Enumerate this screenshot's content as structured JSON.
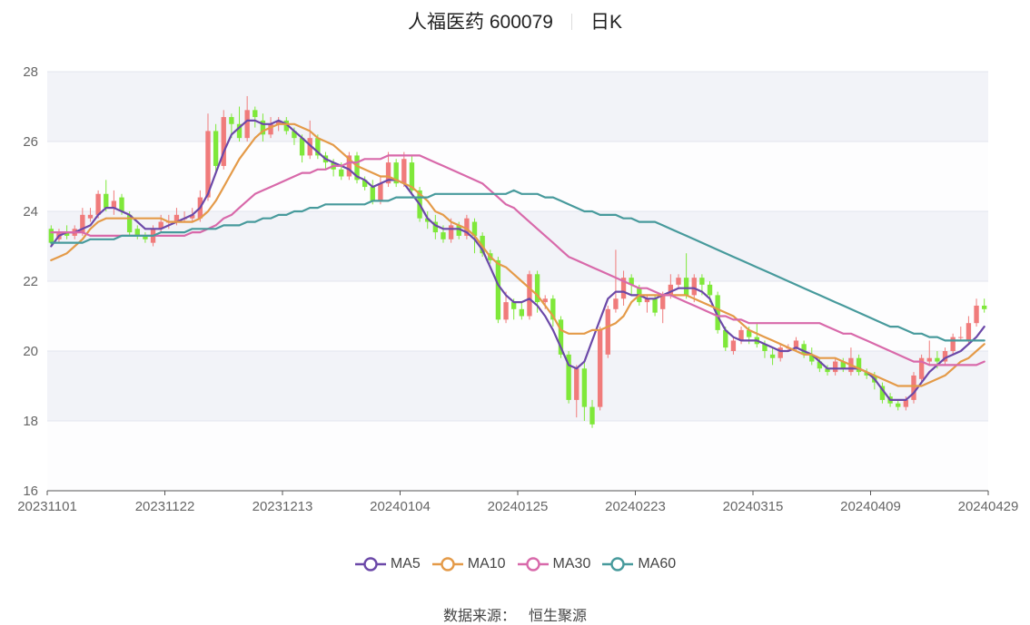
{
  "title": {
    "name": "人福医药 600079",
    "period": "日K"
  },
  "source": {
    "label": "数据来源：",
    "value": "恒生聚源"
  },
  "chart_data": {
    "type": "candlestick",
    "x_ticks": [
      "20231101",
      "20231122",
      "20231213",
      "20240104",
      "20240125",
      "20240223",
      "20240315",
      "20240409",
      "20240429"
    ],
    "ylim": [
      16,
      28
    ],
    "yticks": [
      16,
      18,
      20,
      22,
      24,
      26,
      28
    ],
    "up_color": "#f07b7b",
    "down_color": "#7fe83a",
    "band_color": "#f2f3f8",
    "candles": [
      [
        23.5,
        23.1,
        23.6,
        23.0
      ],
      [
        23.2,
        23.4,
        23.5,
        23.1
      ],
      [
        23.4,
        23.3,
        23.6,
        23.2
      ],
      [
        23.3,
        23.5,
        23.6,
        23.2
      ],
      [
        23.4,
        23.9,
        24.1,
        23.3
      ],
      [
        23.8,
        23.9,
        24.1,
        23.7
      ],
      [
        23.9,
        24.5,
        24.6,
        23.8
      ],
      [
        24.5,
        24.1,
        24.9,
        24.0
      ],
      [
        24.1,
        24.3,
        24.6,
        23.9
      ],
      [
        24.4,
        24.0,
        24.5,
        23.9
      ],
      [
        23.9,
        23.4,
        24.0,
        23.3
      ],
      [
        23.5,
        23.3,
        23.6,
        23.2
      ],
      [
        23.3,
        23.2,
        23.4,
        23.1
      ],
      [
        23.1,
        23.5,
        23.6,
        23.0
      ],
      [
        23.5,
        23.7,
        23.9,
        23.4
      ],
      [
        23.7,
        23.7,
        23.9,
        23.5
      ],
      [
        23.7,
        23.9,
        24.1,
        23.6
      ],
      [
        23.8,
        23.8,
        24.0,
        23.7
      ],
      [
        23.8,
        23.9,
        24.1,
        23.7
      ],
      [
        23.8,
        24.4,
        24.6,
        23.7
      ],
      [
        24.4,
        26.3,
        26.8,
        24.3
      ],
      [
        26.3,
        25.3,
        26.5,
        25.1
      ],
      [
        25.3,
        26.7,
        26.9,
        25.2
      ],
      [
        26.7,
        26.5,
        26.8,
        26.1
      ],
      [
        26.5,
        26.1,
        27.0,
        26.0
      ],
      [
        26.1,
        26.9,
        27.3,
        26.0
      ],
      [
        26.9,
        26.7,
        27.0,
        26.4
      ],
      [
        26.6,
        26.2,
        26.8,
        26.0
      ],
      [
        26.2,
        26.5,
        26.7,
        26.1
      ],
      [
        26.5,
        26.6,
        26.7,
        26.3
      ],
      [
        26.6,
        26.3,
        26.7,
        26.2
      ],
      [
        26.3,
        26.1,
        26.4,
        25.9
      ],
      [
        26.1,
        25.6,
        26.2,
        25.4
      ],
      [
        25.6,
        26.1,
        26.6,
        25.5
      ],
      [
        26.1,
        25.6,
        26.2,
        25.5
      ],
      [
        25.6,
        25.4,
        25.7,
        25.2
      ],
      [
        25.4,
        25.2,
        25.5,
        25.0
      ],
      [
        25.2,
        25.0,
        25.4,
        24.9
      ],
      [
        25.0,
        25.6,
        25.7,
        24.9
      ],
      [
        25.6,
        24.9,
        25.7,
        24.8
      ],
      [
        24.9,
        24.7,
        25.0,
        24.6
      ],
      [
        24.7,
        24.3,
        24.9,
        24.2
      ],
      [
        24.3,
        24.8,
        25.0,
        24.2
      ],
      [
        24.8,
        25.4,
        25.7,
        24.7
      ],
      [
        25.4,
        24.8,
        25.5,
        24.7
      ],
      [
        24.8,
        25.5,
        25.7,
        24.7
      ],
      [
        25.4,
        24.6,
        25.6,
        24.5
      ],
      [
        24.6,
        23.8,
        24.7,
        23.7
      ],
      [
        23.8,
        23.7,
        24.0,
        23.5
      ],
      [
        23.7,
        23.4,
        23.9,
        23.2
      ],
      [
        23.4,
        23.2,
        23.6,
        23.1
      ],
      [
        23.2,
        23.6,
        23.8,
        23.1
      ],
      [
        23.6,
        23.3,
        23.7,
        23.2
      ],
      [
        23.3,
        23.8,
        23.9,
        23.2
      ],
      [
        23.7,
        23.3,
        23.8,
        22.8
      ],
      [
        23.3,
        22.8,
        23.4,
        22.7
      ],
      [
        22.8,
        22.6,
        22.9,
        22.5
      ],
      [
        22.6,
        20.9,
        22.7,
        20.8
      ],
      [
        20.9,
        21.4,
        21.7,
        20.8
      ],
      [
        21.4,
        21.2,
        21.5,
        20.9
      ],
      [
        21.2,
        21.0,
        21.4,
        20.9
      ],
      [
        21.0,
        22.2,
        22.3,
        20.9
      ],
      [
        22.2,
        21.4,
        22.3,
        21.1
      ],
      [
        21.4,
        21.5,
        21.6,
        21.2
      ],
      [
        21.5,
        20.9,
        21.6,
        20.7
      ],
      [
        20.9,
        19.9,
        21.0,
        19.8
      ],
      [
        19.9,
        18.6,
        20.0,
        18.5
      ],
      [
        18.6,
        19.5,
        19.6,
        18.1
      ],
      [
        19.5,
        18.4,
        19.7,
        18.0
      ],
      [
        18.4,
        17.9,
        18.6,
        17.8
      ],
      [
        18.4,
        20.6,
        20.7,
        18.3
      ],
      [
        19.9,
        21.2,
        21.3,
        19.8
      ],
      [
        21.2,
        21.5,
        22.9,
        21.1
      ],
      [
        21.5,
        22.1,
        22.3,
        21.3
      ],
      [
        22.1,
        21.9,
        22.2,
        21.6
      ],
      [
        21.8,
        21.4,
        21.9,
        21.3
      ],
      [
        21.4,
        21.5,
        21.6,
        21.1
      ],
      [
        21.5,
        21.1,
        21.6,
        21.0
      ],
      [
        21.2,
        21.6,
        21.7,
        20.8
      ],
      [
        21.6,
        21.9,
        22.2,
        21.5
      ],
      [
        21.9,
        22.1,
        22.2,
        21.8
      ],
      [
        22.1,
        21.6,
        22.8,
        21.5
      ],
      [
        21.6,
        22.1,
        22.2,
        21.4
      ],
      [
        22.1,
        21.9,
        22.2,
        21.6
      ],
      [
        21.9,
        21.6,
        22.0,
        21.4
      ],
      [
        21.6,
        20.6,
        21.7,
        20.5
      ],
      [
        20.6,
        20.1,
        20.7,
        20.0
      ],
      [
        20.0,
        20.3,
        20.4,
        19.9
      ],
      [
        20.3,
        20.6,
        20.7,
        20.2
      ],
      [
        20.6,
        20.4,
        20.7,
        20.2
      ],
      [
        20.4,
        20.2,
        20.8,
        20.1
      ],
      [
        20.2,
        20.0,
        20.3,
        19.8
      ],
      [
        19.9,
        19.8,
        20.1,
        19.6
      ],
      [
        19.8,
        20.1,
        20.2,
        19.7
      ],
      [
        20.1,
        20.1,
        20.2,
        20.0
      ],
      [
        20.1,
        20.3,
        20.4,
        20.0
      ],
      [
        20.2,
        19.9,
        20.3,
        19.8
      ],
      [
        19.9,
        19.7,
        20.1,
        19.6
      ],
      [
        19.7,
        19.5,
        19.8,
        19.4
      ],
      [
        19.5,
        19.4,
        19.6,
        19.3
      ],
      [
        19.4,
        19.7,
        19.8,
        19.3
      ],
      [
        19.7,
        19.5,
        19.8,
        19.4
      ],
      [
        19.4,
        19.8,
        20.1,
        19.3
      ],
      [
        19.8,
        19.4,
        19.9,
        19.3
      ],
      [
        19.4,
        19.3,
        19.5,
        19.2
      ],
      [
        19.3,
        19.1,
        19.4,
        18.9
      ],
      [
        19.0,
        18.6,
        19.1,
        18.5
      ],
      [
        18.7,
        18.5,
        18.8,
        18.4
      ],
      [
        18.5,
        18.4,
        18.6,
        18.3
      ],
      [
        18.4,
        18.6,
        18.7,
        18.3
      ],
      [
        18.6,
        19.3,
        19.4,
        18.5
      ],
      [
        19.2,
        19.8,
        19.9,
        19.1
      ],
      [
        19.7,
        19.8,
        20.3,
        19.6
      ],
      [
        19.8,
        19.7,
        20.0,
        19.5
      ],
      [
        19.7,
        20.0,
        20.1,
        19.6
      ],
      [
        20.0,
        20.4,
        20.5,
        19.9
      ],
      [
        20.4,
        20.4,
        20.7,
        20.3
      ],
      [
        20.3,
        20.8,
        21.0,
        20.2
      ],
      [
        20.8,
        21.3,
        21.5,
        20.7
      ],
      [
        21.3,
        21.2,
        21.5,
        21.1
      ]
    ],
    "series": [
      {
        "name": "MA5",
        "color": "#6b48a8",
        "values": [
          23.0,
          23.3,
          23.4,
          23.4,
          23.5,
          23.6,
          23.9,
          24.1,
          24.1,
          24.0,
          23.9,
          23.7,
          23.5,
          23.5,
          23.5,
          23.6,
          23.7,
          23.8,
          23.9,
          24.1,
          24.5,
          25.1,
          25.7,
          26.2,
          26.4,
          26.6,
          26.6,
          26.5,
          26.5,
          26.6,
          26.5,
          26.3,
          26.1,
          25.9,
          25.7,
          25.5,
          25.4,
          25.3,
          25.2,
          25.0,
          24.9,
          24.7,
          24.8,
          24.9,
          24.9,
          24.8,
          24.5,
          24.2,
          23.8,
          23.6,
          23.5,
          23.5,
          23.5,
          23.4,
          23.2,
          22.9,
          22.4,
          21.9,
          21.6,
          21.4,
          21.4,
          21.5,
          21.3,
          21.0,
          20.6,
          20.1,
          19.6,
          19.5,
          19.7,
          20.3,
          20.9,
          21.5,
          21.7,
          21.7,
          21.6,
          21.6,
          21.5,
          21.5,
          21.6,
          21.7,
          21.8,
          21.8,
          21.8,
          21.7,
          21.5,
          21.0,
          20.6,
          20.4,
          20.3,
          20.3,
          20.3,
          20.2,
          20.1,
          20.0,
          20.0,
          20.1,
          20.0,
          19.9,
          19.7,
          19.5,
          19.5,
          19.5,
          19.5,
          19.5,
          19.4,
          19.2,
          18.9,
          18.6,
          18.6,
          18.6,
          18.8,
          19.1,
          19.4,
          19.6,
          19.8,
          19.9,
          20.0,
          20.2,
          20.4,
          20.7
        ]
      },
      {
        "name": "MA10",
        "color": "#e49a48",
        "values": [
          22.6,
          22.7,
          22.8,
          23.0,
          23.2,
          23.5,
          23.7,
          23.8,
          23.8,
          23.8,
          23.8,
          23.8,
          23.8,
          23.8,
          23.8,
          23.7,
          23.7,
          23.7,
          23.7,
          23.8,
          24.0,
          24.3,
          24.7,
          25.1,
          25.5,
          25.8,
          26.1,
          26.3,
          26.4,
          26.5,
          26.5,
          26.5,
          26.4,
          26.3,
          26.1,
          26.0,
          25.9,
          25.7,
          25.5,
          25.3,
          25.2,
          25.1,
          25.0,
          25.0,
          24.9,
          24.8,
          24.7,
          24.5,
          24.3,
          24.0,
          23.9,
          23.7,
          23.6,
          23.5,
          23.3,
          23.0,
          22.7,
          22.5,
          22.4,
          22.2,
          22.0,
          21.8,
          21.6,
          21.3,
          21.0,
          20.6,
          20.5,
          20.5,
          20.5,
          20.6,
          20.6,
          20.7,
          20.8,
          21.0,
          21.4,
          21.6,
          21.6,
          21.6,
          21.6,
          21.6,
          21.6,
          21.6,
          21.5,
          21.4,
          21.3,
          21.2,
          21.1,
          21.0,
          20.8,
          20.6,
          20.5,
          20.4,
          20.3,
          20.2,
          20.1,
          20.0,
          19.9,
          19.9,
          19.8,
          19.8,
          19.8,
          19.7,
          19.6,
          19.5,
          19.4,
          19.3,
          19.2,
          19.1,
          19.0,
          19.0,
          19.0,
          19.0,
          19.1,
          19.2,
          19.3,
          19.5,
          19.7,
          19.8,
          20.0,
          20.2
        ]
      },
      {
        "name": "MA30",
        "color": "#d869aa",
        "values": [
          23.4,
          23.4,
          23.4,
          23.4,
          23.4,
          23.3,
          23.3,
          23.3,
          23.3,
          23.3,
          23.3,
          23.3,
          23.3,
          23.3,
          23.3,
          23.3,
          23.3,
          23.3,
          23.4,
          23.4,
          23.5,
          23.6,
          23.8,
          23.9,
          24.1,
          24.3,
          24.5,
          24.6,
          24.7,
          24.8,
          24.9,
          25.0,
          25.1,
          25.1,
          25.2,
          25.2,
          25.3,
          25.3,
          25.4,
          25.4,
          25.5,
          25.5,
          25.5,
          25.6,
          25.6,
          25.6,
          25.6,
          25.6,
          25.5,
          25.4,
          25.3,
          25.2,
          25.1,
          25.0,
          24.9,
          24.8,
          24.6,
          24.4,
          24.2,
          24.1,
          23.9,
          23.7,
          23.5,
          23.3,
          23.1,
          22.9,
          22.7,
          22.6,
          22.5,
          22.4,
          22.3,
          22.2,
          22.1,
          22.0,
          21.9,
          21.8,
          21.8,
          21.7,
          21.6,
          21.6,
          21.5,
          21.4,
          21.3,
          21.2,
          21.1,
          21.0,
          21.0,
          20.9,
          20.9,
          20.8,
          20.8,
          20.8,
          20.8,
          20.8,
          20.8,
          20.8,
          20.8,
          20.8,
          20.8,
          20.7,
          20.6,
          20.5,
          20.5,
          20.4,
          20.3,
          20.2,
          20.1,
          20.0,
          19.9,
          19.8,
          19.7,
          19.7,
          19.6,
          19.6,
          19.6,
          19.6,
          19.6,
          19.6,
          19.6,
          19.7
        ]
      },
      {
        "name": "MA60",
        "color": "#479a9c",
        "values": [
          23.1,
          23.1,
          23.1,
          23.1,
          23.1,
          23.2,
          23.2,
          23.2,
          23.2,
          23.3,
          23.3,
          23.3,
          23.3,
          23.3,
          23.4,
          23.4,
          23.4,
          23.4,
          23.5,
          23.5,
          23.5,
          23.5,
          23.6,
          23.6,
          23.6,
          23.7,
          23.7,
          23.8,
          23.8,
          23.9,
          23.9,
          24.0,
          24.0,
          24.1,
          24.1,
          24.2,
          24.2,
          24.2,
          24.2,
          24.2,
          24.2,
          24.3,
          24.3,
          24.3,
          24.4,
          24.4,
          24.4,
          24.4,
          24.4,
          24.5,
          24.5,
          24.5,
          24.5,
          24.5,
          24.5,
          24.5,
          24.5,
          24.5,
          24.5,
          24.6,
          24.5,
          24.5,
          24.5,
          24.4,
          24.4,
          24.3,
          24.2,
          24.1,
          24.0,
          24.0,
          23.9,
          23.9,
          23.9,
          23.8,
          23.8,
          23.7,
          23.7,
          23.7,
          23.6,
          23.5,
          23.4,
          23.3,
          23.2,
          23.1,
          23.0,
          22.9,
          22.8,
          22.7,
          22.6,
          22.5,
          22.4,
          22.3,
          22.2,
          22.1,
          22.0,
          21.9,
          21.8,
          21.7,
          21.6,
          21.5,
          21.4,
          21.3,
          21.2,
          21.1,
          21.0,
          20.9,
          20.8,
          20.7,
          20.7,
          20.6,
          20.5,
          20.5,
          20.4,
          20.4,
          20.3,
          20.3,
          20.3,
          20.3,
          20.3,
          20.3
        ]
      }
    ]
  }
}
